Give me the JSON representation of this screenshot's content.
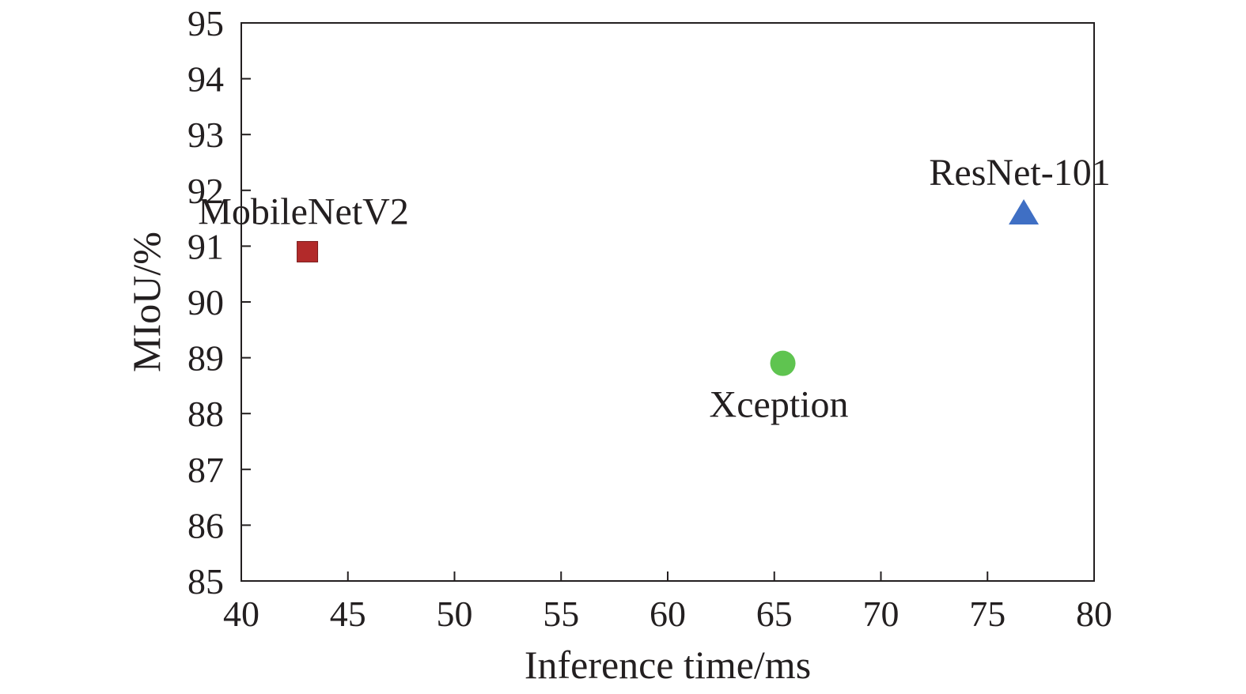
{
  "chart_data": {
    "type": "scatter",
    "xlabel": "Inference time/ms",
    "ylabel": "MIoU/%",
    "xlim": [
      40,
      80
    ],
    "ylim": [
      85,
      95
    ],
    "xticks": [
      "40",
      "45",
      "50",
      "55",
      "60",
      "65",
      "70",
      "75",
      "80"
    ],
    "yticks": [
      "85",
      "86",
      "87",
      "88",
      "89",
      "90",
      "91",
      "92",
      "93",
      "94",
      "95"
    ],
    "grid": false,
    "points": [
      {
        "label": "MobileNetV2",
        "x": 43.1,
        "y": 90.9,
        "marker": "square",
        "color": "#b22a2a",
        "label_position": "above"
      },
      {
        "label": "Xception",
        "x": 65.4,
        "y": 88.9,
        "marker": "circle",
        "color": "#5fc450",
        "label_position": "below"
      },
      {
        "label": "ResNet-101",
        "x": 76.7,
        "y": 91.6,
        "marker": "triangle",
        "color": "#3f6fc4",
        "label_position": "above"
      }
    ]
  }
}
